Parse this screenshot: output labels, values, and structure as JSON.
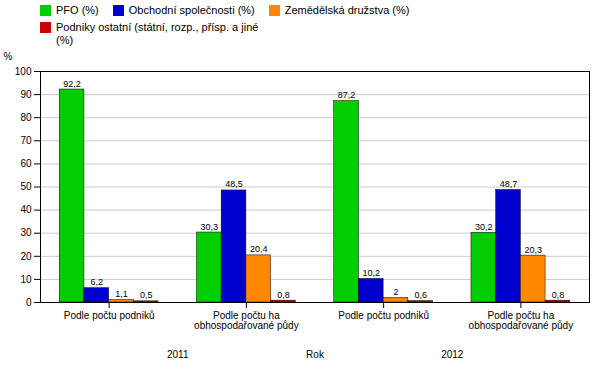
{
  "chart_data": {
    "type": "bar",
    "categories": [
      "Podle počtu podniků",
      "Podle počtu ha\nobhospodařované půdy",
      "Podle počtu podniků",
      "Podle počtu ha\nobhospodařované půdy"
    ],
    "series": [
      {
        "name": "PFO (%)",
        "color": "#00CC00",
        "values": [
          92.2,
          30.3,
          87.2,
          30.2
        ],
        "value_labels": [
          "92,2",
          "30,3",
          "87,2",
          "30,2"
        ]
      },
      {
        "name": "Obchodní společnosti (%)",
        "color": "#0000CC",
        "values": [
          6.2,
          48.5,
          10.2,
          48.7
        ],
        "value_labels": [
          "6,2",
          "48,5",
          "10,2",
          "48,7"
        ]
      },
      {
        "name": "Zemědělská družstva (%)",
        "color": "#FF8800",
        "values": [
          1.1,
          20.4,
          2.0,
          20.3
        ],
        "value_labels": [
          "1,1",
          "20,4",
          "2",
          "20,3"
        ]
      },
      {
        "name": "Podniky ostatní (státní, rozp., přísp. a jiné\n(%)",
        "color": "#CC0000",
        "values": [
          0.5,
          0.8,
          0.6,
          0.8
        ],
        "value_labels": [
          "0,5",
          "0,8",
          "0,6",
          "0,8"
        ]
      }
    ],
    "y_label": "%",
    "ylim": [
      0,
      100
    ],
    "yticks": [
      0,
      10,
      20,
      30,
      40,
      50,
      60,
      70,
      80,
      90,
      100
    ],
    "grid": true,
    "data_labels": true,
    "annotations": [
      "2011",
      "Rok",
      "2012"
    ]
  }
}
